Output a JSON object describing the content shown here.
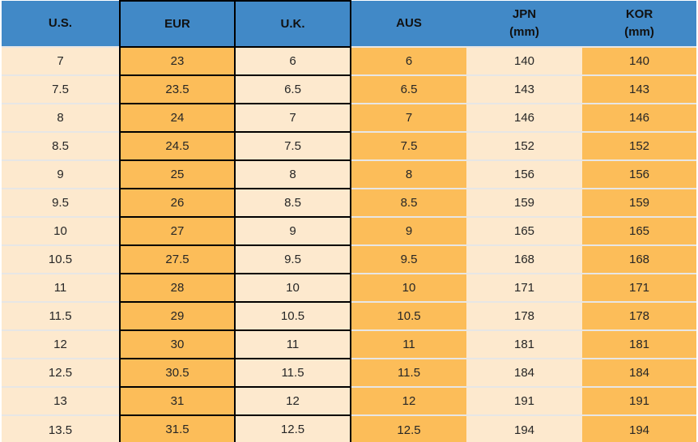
{
  "chart_data": {
    "type": "table",
    "columns": [
      "U.S.",
      "EUR",
      "U.K.",
      "AUS",
      "JPN\n(mm)",
      "KOR\n(mm)"
    ],
    "rows": [
      [
        "7",
        "23",
        "6",
        "6",
        "140",
        "140"
      ],
      [
        "7.5",
        "23.5",
        "6.5",
        "6.5",
        "143",
        "143"
      ],
      [
        "8",
        "24",
        "7",
        "7",
        "146",
        "146"
      ],
      [
        "8.5",
        "24.5",
        "7.5",
        "7.5",
        "152",
        "152"
      ],
      [
        "9",
        "25",
        "8",
        "8",
        "156",
        "156"
      ],
      [
        "9.5",
        "26",
        "8.5",
        "8.5",
        "159",
        "159"
      ],
      [
        "10",
        "27",
        "9",
        "9",
        "165",
        "165"
      ],
      [
        "10.5",
        "27.5",
        "9.5",
        "9.5",
        "168",
        "168"
      ],
      [
        "11",
        "28",
        "10",
        "10",
        "171",
        "171"
      ],
      [
        "11.5",
        "29",
        "10.5",
        "10.5",
        "178",
        "178"
      ],
      [
        "12",
        "30",
        "11",
        "11",
        "181",
        "181"
      ],
      [
        "12.5",
        "30.5",
        "11.5",
        "11.5",
        "184",
        "184"
      ],
      [
        "13",
        "31",
        "12",
        "12",
        "191",
        "191"
      ],
      [
        "13.5",
        "31.5",
        "12.5",
        "12.5",
        "194",
        "194"
      ]
    ],
    "layout": {
      "grid": "light row separators; black outline around EUR and U.K. columns",
      "highlighted_columns": [
        "EUR",
        "U.K."
      ]
    }
  },
  "colors": {
    "header_blue": "#4189C7",
    "column_orange": "#FCBD59",
    "column_peach": "#FDE9CE",
    "row_separator": "#E7E6E5",
    "highlight_border": "#000000",
    "text": "#262626"
  }
}
